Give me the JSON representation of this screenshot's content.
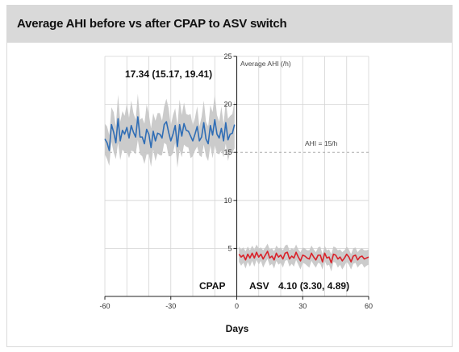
{
  "chart_data": {
    "type": "line",
    "title": "Average AHI before vs after CPAP to ASV switch",
    "xlabel": "Days",
    "ylabel": "Average AHI (/h)",
    "xlim": [
      -60,
      60
    ],
    "ylim": [
      0,
      25
    ],
    "xticks": [
      -60,
      -30,
      0,
      30,
      60
    ],
    "yticks": [
      0,
      5,
      10,
      15,
      20,
      25
    ],
    "grid": true,
    "reference_line": {
      "y": 15,
      "label": "AHI = 15/h"
    },
    "annotations": {
      "cpap_summary": "17.34 (15.17, 19.41)",
      "asv_summary": "4.10 (3.30, 4.89)",
      "cpap_label": "CPAP",
      "asv_label": "ASV"
    },
    "colors": {
      "cpap": "#2f6db5",
      "asv": "#d9222a",
      "band": "#c8c8c8",
      "title_bar": "#d9d9d9"
    },
    "series": [
      {
        "x": [
          -60,
          -59,
          -58,
          -57,
          -56,
          -55,
          -54,
          -53,
          -52,
          -51,
          -50,
          -49,
          -48,
          -47,
          -46,
          -45,
          -44,
          -43,
          -42,
          -41,
          -40,
          -39,
          -38,
          -37,
          -36,
          -35,
          -34,
          -33,
          -32,
          -31,
          -30,
          -29,
          -28,
          -27,
          -26,
          -25,
          -24,
          -23,
          -22,
          -21,
          -20,
          -19,
          -18,
          -17,
          -16,
          -15,
          -14,
          -13,
          -12,
          -11,
          -10,
          -9,
          -8,
          -7,
          -6,
          -5,
          -4,
          -3,
          -2,
          -1
        ],
        "y": [
          16.4,
          16.0,
          15.2,
          17.9,
          17.1,
          16.0,
          18.5,
          16.2,
          17.3,
          16.9,
          17.6,
          16.5,
          17.8,
          17.1,
          16.6,
          18.7,
          16.6,
          16.6,
          15.9,
          17.4,
          16.9,
          15.5,
          17.2,
          16.2,
          17.0,
          16.9,
          16.5,
          17.9,
          18.2,
          17.1,
          16.2,
          16.9,
          17.8,
          15.6,
          17.9,
          16.7,
          18.0,
          17.3,
          17.2,
          16.7,
          16.2,
          16.9,
          17.7,
          16.2,
          16.6,
          18.1,
          16.4,
          15.9,
          17.8,
          16.8,
          18.4,
          16.9,
          16.5,
          17.5,
          16.2,
          18.1,
          16.3,
          16.9,
          17.0,
          17.9
        ],
        "lower": [
          14.8,
          14.3,
          13.6,
          16.1,
          15.0,
          14.3,
          16.0,
          14.2,
          15.3,
          15.0,
          15.1,
          14.4,
          15.2,
          15.1,
          14.8,
          16.3,
          14.8,
          14.6,
          13.8,
          14.8,
          14.8,
          13.5,
          15.3,
          14.1,
          14.9,
          14.7,
          14.7,
          16.0,
          15.8,
          14.6,
          14.6,
          14.9,
          16.0,
          13.4,
          15.3,
          14.5,
          15.8,
          15.6,
          15.5,
          14.4,
          14.6,
          15.2,
          15.6,
          14.7,
          14.5,
          15.8,
          14.6,
          14.1,
          15.7,
          14.4,
          15.8,
          14.9,
          14.8,
          15.2,
          14.5,
          15.9,
          14.1,
          15.0,
          15.0,
          15.4
        ],
        "upper": [
          18.0,
          17.7,
          16.8,
          19.7,
          19.2,
          17.7,
          21.0,
          18.2,
          19.3,
          18.8,
          20.1,
          18.6,
          20.4,
          19.1,
          18.4,
          21.1,
          18.4,
          18.6,
          18.0,
          20.0,
          19.0,
          17.5,
          19.1,
          18.3,
          19.1,
          19.1,
          18.3,
          19.8,
          20.6,
          19.6,
          17.8,
          18.9,
          19.6,
          17.8,
          20.5,
          18.9,
          20.2,
          19.0,
          18.9,
          19.0,
          17.8,
          18.6,
          19.8,
          17.7,
          18.7,
          20.4,
          18.2,
          17.7,
          19.9,
          19.2,
          21.0,
          18.9,
          18.2,
          19.8,
          17.9,
          20.3,
          18.5,
          18.8,
          19.0,
          20.4
        ]
      },
      {
        "x": [
          1,
          2,
          3,
          4,
          5,
          6,
          7,
          8,
          9,
          10,
          11,
          12,
          13,
          14,
          15,
          16,
          17,
          18,
          19,
          20,
          21,
          22,
          23,
          24,
          25,
          26,
          27,
          28,
          29,
          30,
          31,
          32,
          33,
          34,
          35,
          36,
          37,
          38,
          39,
          40,
          41,
          42,
          43,
          44,
          45,
          46,
          47,
          48,
          49,
          50,
          51,
          52,
          53,
          54,
          55,
          56,
          57,
          58,
          59,
          60
        ],
        "y": [
          4.4,
          4.1,
          4.3,
          3.8,
          4.4,
          4.0,
          4.5,
          4.0,
          4.6,
          4.1,
          4.4,
          3.9,
          4.3,
          4.7,
          4.0,
          4.2,
          3.8,
          4.5,
          4.1,
          4.3,
          3.9,
          4.5,
          4.6,
          3.9,
          4.2,
          4.0,
          4.6,
          4.1,
          3.7,
          4.3,
          4.2,
          4.0,
          3.9,
          4.5,
          4.1,
          3.8,
          4.3,
          4.3,
          3.6,
          4.5,
          4.0,
          4.1,
          3.5,
          4.4,
          4.3,
          3.9,
          4.1,
          3.7,
          4.0,
          4.4,
          4.1,
          3.6,
          4.2,
          4.3,
          3.8,
          4.1,
          4.2,
          3.9,
          4.0,
          4.1
        ],
        "lower": [
          3.6,
          3.2,
          3.5,
          2.9,
          3.6,
          3.1,
          3.7,
          3.1,
          3.8,
          3.3,
          3.7,
          3.0,
          3.5,
          3.9,
          3.2,
          3.4,
          2.9,
          3.7,
          3.3,
          3.5,
          3.0,
          3.7,
          3.8,
          3.1,
          3.4,
          3.1,
          3.8,
          3.3,
          2.8,
          3.5,
          3.4,
          3.2,
          3.0,
          3.7,
          3.3,
          3.0,
          3.5,
          3.4,
          2.8,
          3.7,
          3.2,
          3.3,
          2.6,
          3.6,
          3.5,
          3.0,
          3.3,
          2.8,
          3.2,
          3.6,
          3.3,
          2.8,
          3.4,
          3.5,
          3.0,
          3.3,
          3.4,
          3.0,
          3.2,
          3.3
        ],
        "upper": [
          5.2,
          4.9,
          5.1,
          4.7,
          5.2,
          4.8,
          5.3,
          4.9,
          5.4,
          5.0,
          5.1,
          4.8,
          5.1,
          5.5,
          4.9,
          5.0,
          4.7,
          5.3,
          5.0,
          5.1,
          4.8,
          5.3,
          5.4,
          4.8,
          5.0,
          4.9,
          5.4,
          4.9,
          4.6,
          5.1,
          5.0,
          4.8,
          4.8,
          5.3,
          4.9,
          4.6,
          5.1,
          5.2,
          4.4,
          5.3,
          4.8,
          4.9,
          4.4,
          5.2,
          5.1,
          4.8,
          4.9,
          4.6,
          4.8,
          5.2,
          4.9,
          4.4,
          5.0,
          5.1,
          4.6,
          4.9,
          5.0,
          4.8,
          4.8,
          4.9
        ]
      }
    ]
  }
}
